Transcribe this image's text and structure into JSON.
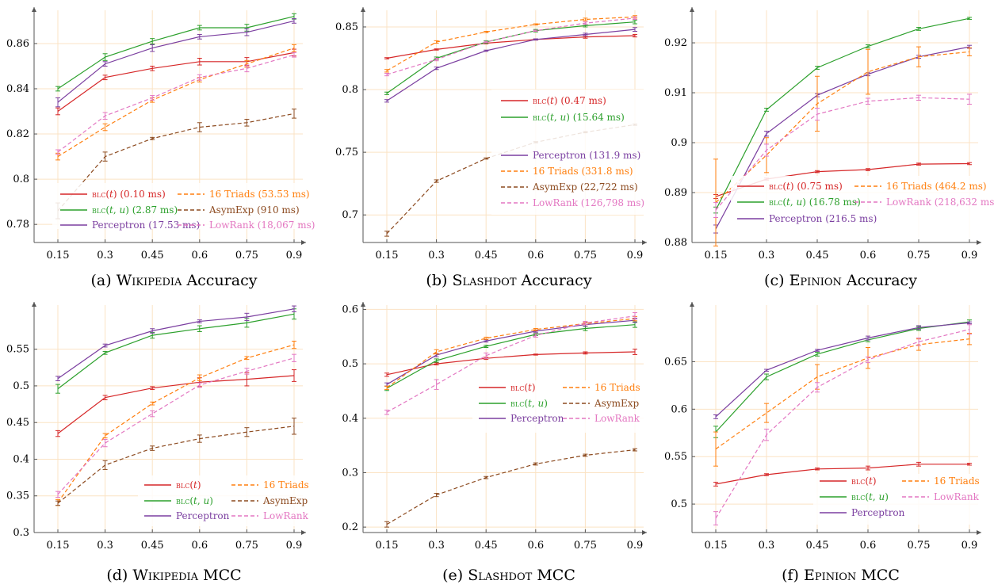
{
  "colors": {
    "BLC(t)": "#d62728",
    "BLC(t,u)": "#2ca02c",
    "Perceptron": "#7b3fa0",
    "16 Triads": "#ff7f0e",
    "AsymExp": "#8c4a1f",
    "LowRank": "#e377c2",
    "grid": "#fbe3c4"
  },
  "chart_data": [
    {
      "id": "a",
      "type": "line",
      "caption": "(a) Wikipedia Accuracy",
      "x": [
        0.15,
        0.3,
        0.45,
        0.6,
        0.75,
        0.9
      ],
      "xticks": [
        "0.15",
        "0.3",
        "0.45",
        "0.6",
        "0.75",
        "0.9"
      ],
      "ylim": [
        0.772,
        0.874
      ],
      "yticks": [
        0.78,
        0.8,
        0.82,
        0.84,
        0.86
      ],
      "ytick_labels": [
        "0.78",
        "0.8",
        "0.82",
        "0.84",
        "0.86"
      ],
      "grid": true,
      "legend_position": "bottom-center",
      "series": [
        {
          "name": "BLC(t)",
          "legend": "(0.10 ms)",
          "dashed": false,
          "values": [
            0.83,
            0.845,
            0.849,
            0.852,
            0.852,
            0.856
          ],
          "err": [
            0.0015,
            0.001,
            0.001,
            0.0015,
            0.0018,
            0.0015
          ]
        },
        {
          "name": "BLC(t,u)",
          "legend": "(2.87 ms)",
          "dashed": false,
          "values": [
            0.84,
            0.854,
            0.861,
            0.867,
            0.867,
            0.872
          ],
          "err": [
            0.001,
            0.0015,
            0.0012,
            0.001,
            0.0015,
            0.0012
          ]
        },
        {
          "name": "Perceptron",
          "legend": "(17.53 ms)",
          "dashed": false,
          "values": [
            0.834,
            0.851,
            0.858,
            0.863,
            0.865,
            0.87
          ],
          "err": [
            0.002,
            0.001,
            0.0015,
            0.001,
            0.0015,
            0.001
          ]
        },
        {
          "name": "16 Triads",
          "legend": "(53.53 ms)",
          "dashed": true,
          "values": [
            0.81,
            0.823,
            0.835,
            0.844,
            0.851,
            0.858
          ],
          "err": [
            0.0015,
            0.0015,
            0.001,
            0.001,
            0.0015,
            0.0015
          ]
        },
        {
          "name": "AsymExp",
          "legend": "(910 ms)",
          "dashed": true,
          "values": [
            0.786,
            0.81,
            0.818,
            0.823,
            0.825,
            0.829
          ],
          "err": [
            0.0035,
            0.002,
            0.0005,
            0.002,
            0.0015,
            0.002
          ]
        },
        {
          "name": "LowRank",
          "legend": "(18,067 ms)",
          "dashed": true,
          "values": [
            0.812,
            0.828,
            0.836,
            0.845,
            0.849,
            0.855
          ],
          "err": [
            0.001,
            0.0015,
            0.001,
            0.0012,
            0.0015,
            0.001
          ]
        }
      ]
    },
    {
      "id": "b",
      "type": "line",
      "caption": "(b) Slashdot Accuracy",
      "x": [
        0.15,
        0.3,
        0.45,
        0.6,
        0.75,
        0.9
      ],
      "xticks": [
        "0.15",
        "0.3",
        "0.45",
        "0.6",
        "0.75",
        "0.9"
      ],
      "ylim": [
        0.678,
        0.862
      ],
      "yticks": [
        0.7,
        0.75,
        0.8,
        0.85
      ],
      "ytick_labels": [
        "0.7",
        "0.75",
        "0.8",
        "0.85"
      ],
      "grid": true,
      "legend_position": "right",
      "series": [
        {
          "name": "BLC(t)",
          "legend": "(0.47 ms)",
          "dashed": false,
          "values": [
            0.825,
            0.832,
            0.837,
            0.84,
            0.842,
            0.843
          ],
          "err": [
            0.0005,
            0.0005,
            0.0005,
            0.0005,
            0.001,
            0.001
          ]
        },
        {
          "name": "BLC(t,u)",
          "legend": "(15.64 ms)",
          "dashed": false,
          "values": [
            0.797,
            0.825,
            0.838,
            0.847,
            0.851,
            0.854
          ],
          "err": [
            0.001,
            0.001,
            0.001,
            0.001,
            0.001,
            0.0015
          ]
        },
        {
          "name": "Perceptron",
          "legend": "(131.9 ms)",
          "dashed": false,
          "values": [
            0.791,
            0.817,
            0.831,
            0.84,
            0.844,
            0.848
          ],
          "err": [
            0.001,
            0.001,
            0.0005,
            0.0005,
            0.001,
            0.0015
          ]
        },
        {
          "name": "16 Triads",
          "legend": "(331.8 ms)",
          "dashed": true,
          "values": [
            0.815,
            0.838,
            0.846,
            0.852,
            0.856,
            0.858
          ],
          "err": [
            0.001,
            0.001,
            0.0005,
            0.0005,
            0.001,
            0.001
          ]
        },
        {
          "name": "AsymExp",
          "legend": "(22,722 ms)",
          "dashed": true,
          "values": [
            0.685,
            0.727,
            0.745,
            0.758,
            0.766,
            0.772
          ],
          "err": [
            0.002,
            0.001,
            0.0005,
            0.0005,
            0.0005,
            0.0005
          ]
        },
        {
          "name": "LowRank",
          "legend": "(126,798 ms)",
          "dashed": true,
          "values": [
            0.812,
            0.824,
            0.838,
            0.847,
            0.853,
            0.857
          ],
          "err": [
            0.001,
            0.001,
            0.0005,
            0.0005,
            0.001,
            0.001
          ]
        }
      ]
    },
    {
      "id": "c",
      "type": "line",
      "caption": "(c) Epinion Accuracy",
      "x": [
        0.15,
        0.3,
        0.45,
        0.6,
        0.75,
        0.9
      ],
      "xticks": [
        "0.15",
        "0.3",
        "0.45",
        "0.6",
        "0.75",
        "0.9"
      ],
      "ylim": [
        0.88,
        0.9262
      ],
      "yticks": [
        0.88,
        0.89,
        0.9,
        0.91,
        0.92
      ],
      "ytick_labels": [
        "0.88",
        "0.89",
        "0.9",
        "0.91",
        "0.92"
      ],
      "grid": true,
      "legend_position": "bottom-center",
      "series": [
        {
          "name": "BLC(t)",
          "legend": "(0.75 ms)",
          "dashed": false,
          "values": [
            0.8892,
            0.8927,
            0.8942,
            0.8946,
            0.8957,
            0.8958
          ],
          "err": [
            0.0004,
            0.0002,
            0.0002,
            0.0002,
            0.0002,
            0.0002
          ]
        },
        {
          "name": "BLC(t,u)",
          "legend": "(16.78 ms)",
          "dashed": false,
          "values": [
            0.8865,
            0.9066,
            0.915,
            0.9193,
            0.9228,
            0.9249
          ],
          "err": [
            0.0006,
            0.0003,
            0.0003,
            0.0003,
            0.0003,
            0.0002
          ]
        },
        {
          "name": "Perceptron",
          "legend": "(216.5 ms)",
          "dashed": false,
          "values": [
            0.8827,
            0.9018,
            0.9095,
            0.9137,
            0.9172,
            0.9192
          ],
          "err": [
            0.0008,
            0.0005,
            0.0003,
            0.0003,
            0.0003,
            0.0003
          ]
        },
        {
          "name": "16 Triads",
          "legend": "(464.2 ms)",
          "dashed": true,
          "values": [
            0.888,
            0.8975,
            0.9078,
            0.9142,
            0.9172,
            0.9182
          ],
          "err": [
            0.0087,
            0.0035,
            0.0055,
            0.0045,
            0.002,
            0.0008
          ]
        },
        {
          "name": "LowRank",
          "legend": "(218,632 ms)",
          "dashed": true,
          "values": [
            0.8865,
            0.8985,
            0.9057,
            0.9083,
            0.909,
            0.9087
          ],
          "err": [
            0.0015,
            0.0012,
            0.0012,
            0.0006,
            0.0005,
            0.001
          ]
        }
      ]
    },
    {
      "id": "d",
      "type": "line",
      "caption": "(d) Wikipedia MCC",
      "x": [
        0.15,
        0.3,
        0.45,
        0.6,
        0.75,
        0.9
      ],
      "xticks": [
        "0.15",
        "0.3",
        "0.45",
        "0.6",
        "0.75",
        "0.9"
      ],
      "ylim": [
        0.3,
        0.608
      ],
      "yticks": [
        0.3,
        0.35,
        0.4,
        0.45,
        0.5,
        0.55
      ],
      "ytick_labels": [
        "0.3",
        "0.35",
        "0.4",
        "0.45",
        "0.5",
        "0.55"
      ],
      "grid": true,
      "legend_position": "bottom-right",
      "series": [
        {
          "name": "BLC(t)",
          "legend": "",
          "dashed": false,
          "values": [
            0.435,
            0.484,
            0.497,
            0.505,
            0.509,
            0.514
          ],
          "err": [
            0.004,
            0.003,
            0.002,
            0.006,
            0.009,
            0.008
          ]
        },
        {
          "name": "BLC(t,u)",
          "legend": "",
          "dashed": false,
          "values": [
            0.496,
            0.545,
            0.569,
            0.578,
            0.586,
            0.598
          ],
          "err": [
            0.006,
            0.002,
            0.004,
            0.004,
            0.006,
            0.007
          ]
        },
        {
          "name": "Perceptron",
          "legend": "",
          "dashed": false,
          "values": [
            0.51,
            0.555,
            0.575,
            0.588,
            0.594,
            0.605
          ],
          "err": [
            0.003,
            0.002,
            0.003,
            0.002,
            0.005,
            0.004
          ]
        },
        {
          "name": "16 Triads",
          "legend": "",
          "dashed": true,
          "values": [
            0.341,
            0.432,
            0.476,
            0.511,
            0.538,
            0.556
          ],
          "err": [
            0.004,
            0.003,
            0.002,
            0.004,
            0.002,
            0.005
          ]
        },
        {
          "name": "AsymExp",
          "legend": "",
          "dashed": true,
          "values": [
            0.34,
            0.392,
            0.415,
            0.428,
            0.437,
            0.445
          ],
          "err": [
            0.003,
            0.006,
            0.003,
            0.005,
            0.006,
            0.011
          ]
        },
        {
          "name": "LowRank",
          "legend": "",
          "dashed": true,
          "values": [
            0.352,
            0.422,
            0.462,
            0.501,
            0.52,
            0.538
          ],
          "err": [
            0.004,
            0.005,
            0.004,
            0.003,
            0.004,
            0.005
          ]
        }
      ]
    },
    {
      "id": "e",
      "type": "line",
      "caption": "(e) Slashdot MCC",
      "x": [
        0.15,
        0.3,
        0.45,
        0.6,
        0.75,
        0.9
      ],
      "xticks": [
        "0.15",
        "0.3",
        "0.45",
        "0.6",
        "0.75",
        "0.9"
      ],
      "ylim": [
        0.19,
        0.605
      ],
      "yticks": [
        0.2,
        0.3,
        0.4,
        0.5,
        0.6
      ],
      "ytick_labels": [
        "0.2",
        "0.3",
        "0.4",
        "0.5",
        "0.6"
      ],
      "grid": true,
      "legend_position": "right",
      "series": [
        {
          "name": "BLC(t)",
          "legend": "",
          "dashed": false,
          "values": [
            0.48,
            0.5,
            0.51,
            0.517,
            0.52,
            0.522
          ],
          "err": [
            0.003,
            0.002,
            0.002,
            0.001,
            0.002,
            0.005
          ]
        },
        {
          "name": "BLC(t,u)",
          "legend": "",
          "dashed": false,
          "values": [
            0.455,
            0.506,
            0.532,
            0.554,
            0.565,
            0.572
          ],
          "err": [
            0.004,
            0.003,
            0.002,
            0.002,
            0.004,
            0.005
          ]
        },
        {
          "name": "Perceptron",
          "legend": "",
          "dashed": false,
          "values": [
            0.462,
            0.516,
            0.542,
            0.56,
            0.572,
            0.58
          ],
          "err": [
            0.003,
            0.003,
            0.002,
            0.002,
            0.003,
            0.004
          ]
        },
        {
          "name": "16 Triads",
          "legend": "",
          "dashed": true,
          "values": [
            0.456,
            0.522,
            0.547,
            0.563,
            0.574,
            0.583
          ],
          "err": [
            0.003,
            0.004,
            0.002,
            0.002,
            0.002,
            0.004
          ]
        },
        {
          "name": "AsymExp",
          "legend": "",
          "dashed": true,
          "values": [
            0.205,
            0.259,
            0.291,
            0.316,
            0.332,
            0.342
          ],
          "err": [
            0.005,
            0.003,
            0.002,
            0.002,
            0.002,
            0.002
          ]
        },
        {
          "name": "LowRank",
          "legend": "",
          "dashed": true,
          "values": [
            0.411,
            0.462,
            0.515,
            0.552,
            0.575,
            0.588
          ],
          "err": [
            0.004,
            0.009,
            0.005,
            0.003,
            0.003,
            0.006
          ]
        }
      ]
    },
    {
      "id": "f",
      "type": "line",
      "caption": "(f) Epinion MCC",
      "x": [
        0.15,
        0.3,
        0.45,
        0.6,
        0.75,
        0.9
      ],
      "xticks": [
        "0.15",
        "0.3",
        "0.45",
        "0.6",
        "0.75",
        "0.9"
      ],
      "ylim": [
        0.47,
        0.708
      ],
      "yticks": [
        0.5,
        0.55,
        0.6,
        0.65
      ],
      "ytick_labels": [
        "0.5",
        "0.55",
        "0.6",
        "0.65"
      ],
      "grid": true,
      "legend_position": "bottom-right",
      "series": [
        {
          "name": "BLC(t)",
          "legend": "",
          "dashed": false,
          "values": [
            0.521,
            0.531,
            0.537,
            0.538,
            0.542,
            0.542
          ],
          "err": [
            0.002,
            0.001,
            0.001,
            0.002,
            0.002,
            0.001
          ]
        },
        {
          "name": "BLC(t,u)",
          "legend": "",
          "dashed": false,
          "values": [
            0.576,
            0.634,
            0.658,
            0.673,
            0.685,
            0.692
          ],
          "err": [
            0.006,
            0.003,
            0.002,
            0.002,
            0.002,
            0.002
          ]
        },
        {
          "name": "Perceptron",
          "legend": "",
          "dashed": false,
          "values": [
            0.592,
            0.641,
            0.662,
            0.675,
            0.686,
            0.691
          ],
          "err": [
            0.002,
            0.001,
            0.001,
            0.002,
            0.002,
            0.001
          ]
        },
        {
          "name": "16 Triads",
          "legend": "",
          "dashed": true,
          "values": [
            0.558,
            0.596,
            0.634,
            0.654,
            0.668,
            0.674
          ],
          "err": [
            0.018,
            0.01,
            0.013,
            0.011,
            0.006,
            0.006
          ]
        },
        {
          "name": "LowRank",
          "legend": "",
          "dashed": true,
          "values": [
            0.485,
            0.573,
            0.623,
            0.652,
            0.671,
            0.684
          ],
          "err": [
            0.007,
            0.006,
            0.005,
            0.003,
            0.004,
            0.005
          ]
        }
      ]
    }
  ]
}
